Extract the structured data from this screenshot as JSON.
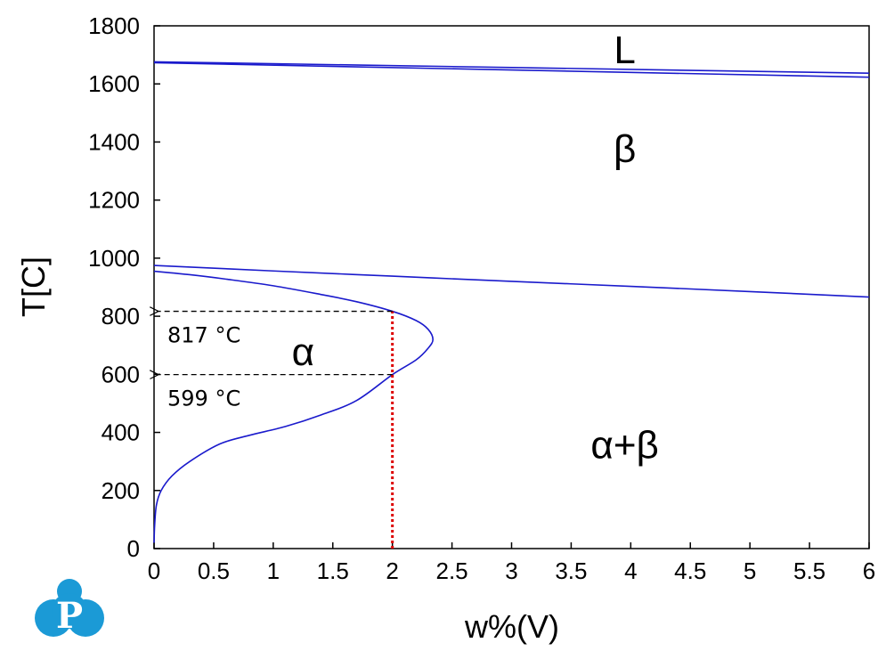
{
  "chart_data": {
    "type": "line",
    "xlabel": "w%(V)",
    "ylabel": "T[C]",
    "xlim": [
      0,
      6
    ],
    "ylim": [
      0,
      1800
    ],
    "xticks": [
      "0",
      "0.5",
      "1",
      "1.5",
      "2",
      "2.5",
      "3",
      "3.5",
      "4",
      "4.5",
      "5",
      "5.5",
      "6"
    ],
    "yticks": [
      "0",
      "200",
      "400",
      "600",
      "800",
      "1000",
      "1200",
      "1400",
      "1600",
      "1800"
    ],
    "grid": false,
    "line_color": "#1a1acc",
    "marker_color": "#dd0000",
    "series": [
      {
        "x": [
          0,
          6
        ],
        "y": [
          1676,
          1637
        ]
      },
      {
        "x": [
          0,
          6
        ],
        "y": [
          1673,
          1623
        ]
      },
      {
        "x": [
          0,
          1,
          2,
          3,
          4,
          5,
          6
        ],
        "y": [
          975,
          956,
          938,
          920,
          903,
          885,
          866
        ]
      },
      {
        "x": [
          0,
          0.005,
          0.02,
          0.06,
          0.15,
          0.3,
          0.55,
          0.8,
          1.1,
          1.4,
          1.7,
          2.0,
          2.2,
          2.3,
          2.34,
          2.3,
          2.2,
          2.0,
          1.7,
          1.4,
          1.0,
          0.6,
          0.3,
          0
        ],
        "y": [
          20,
          80,
          150,
          200,
          250,
          300,
          360,
          390,
          420,
          460,
          510,
          599,
          650,
          690,
          720,
          755,
          785,
          817,
          850,
          875,
          905,
          928,
          943,
          955
        ]
      }
    ],
    "marker": {
      "x": 2,
      "y_range": [
        0,
        817
      ]
    },
    "annotations": [
      {
        "text": "817 °C",
        "y": 817
      },
      {
        "text": "599 °C",
        "y": 599
      }
    ],
    "regions": [
      {
        "text": "L",
        "x": 3.95,
        "y": 1720
      },
      {
        "text": "β",
        "x": 3.95,
        "y": 1380
      },
      {
        "text": "α",
        "x": 1.25,
        "y": 680
      },
      {
        "text": "α+β",
        "x": 3.95,
        "y": 360
      }
    ]
  },
  "logo": {
    "name": "p-logo-icon",
    "letter": "P",
    "color": "#1b9ad6"
  }
}
